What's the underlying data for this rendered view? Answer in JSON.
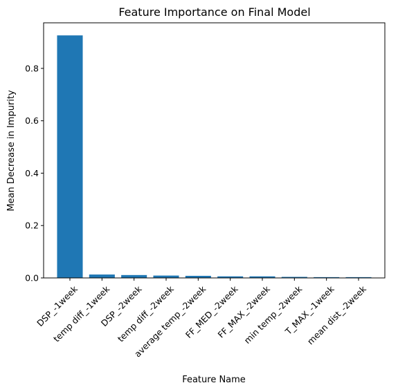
{
  "chart_data": {
    "type": "bar",
    "title": "Feature Importance on Final Model",
    "xlabel": "Feature Name",
    "ylabel": "Mean Decrease in Impurity",
    "categories": [
      "DSP_-1week",
      "temp diff_-1week",
      "DSP_-2week",
      "temp diff_-2week",
      "average temp_-2week",
      "FF_MED_-2week",
      "FF_MAX_-2week",
      "min temp_-2week",
      "T_MAX_-1week",
      "mean dist_-2week"
    ],
    "values": [
      0.926,
      0.013,
      0.011,
      0.009,
      0.008,
      0.006,
      0.006,
      0.004,
      0.003,
      0.003
    ],
    "ylim": [
      0,
      0.974
    ],
    "yticks": [
      0.0,
      0.2,
      0.4,
      0.6,
      0.8
    ],
    "ytick_labels": [
      "0.0",
      "0.2",
      "0.4",
      "0.6",
      "0.8"
    ],
    "bar_color": "#1f77b4",
    "grid": false,
    "legend": "none"
  }
}
